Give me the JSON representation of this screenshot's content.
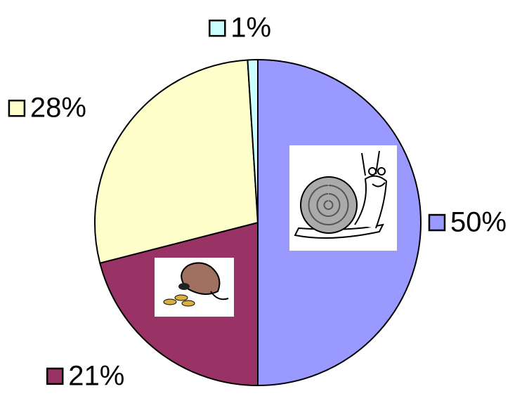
{
  "chart_data": {
    "type": "pie",
    "values": [
      50,
      21,
      28,
      1
    ],
    "value_labels": [
      "50%",
      "21%",
      "28%",
      "1%"
    ],
    "colors": [
      "#9999ff",
      "#993366",
      "#ffffcc",
      "#ccffff"
    ]
  }
}
